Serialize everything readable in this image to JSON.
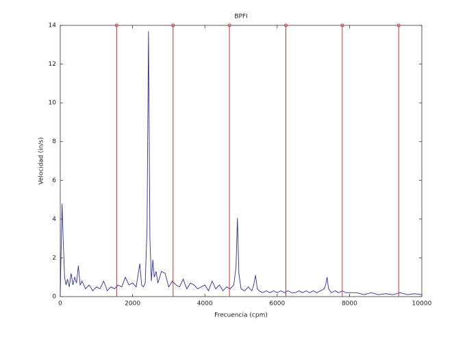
{
  "chart_data": {
    "type": "line",
    "title": "BPFI",
    "xlabel": "Frecuencia (cpm)",
    "ylabel": "Velocidad (in/s)",
    "xlim": [
      0,
      10000
    ],
    "xticks": [
      0,
      2000,
      4000,
      6000,
      8000,
      10000
    ],
    "ylim": [
      0,
      14
    ],
    "yticks": [
      0,
      2,
      4,
      6,
      8,
      10,
      12,
      14
    ],
    "series": [
      {
        "type": "line",
        "color": "#2a2aa8",
        "x": [
          0,
          20,
          50,
          80,
          120,
          160,
          200,
          250,
          300,
          350,
          400,
          450,
          500,
          550,
          600,
          700,
          800,
          900,
          1000,
          1100,
          1200,
          1300,
          1400,
          1500,
          1600,
          1700,
          1800,
          1900,
          2000,
          2100,
          2200,
          2250,
          2300,
          2350,
          2400,
          2440,
          2480,
          2520,
          2560,
          2600,
          2650,
          2700,
          2800,
          2900,
          3000,
          3100,
          3200,
          3300,
          3400,
          3500,
          3600,
          3700,
          3800,
          3900,
          4000,
          4100,
          4200,
          4300,
          4400,
          4500,
          4600,
          4700,
          4800,
          4860,
          4900,
          4940,
          5000,
          5100,
          5200,
          5300,
          5350,
          5400,
          5450,
          5500,
          5600,
          5700,
          5800,
          5900,
          6000,
          6100,
          6200,
          6300,
          6400,
          6500,
          6600,
          6700,
          6800,
          6900,
          7000,
          7100,
          7200,
          7300,
          7340,
          7380,
          7420,
          7500,
          7600,
          7700,
          7800,
          7900,
          8000,
          8200,
          8400,
          8600,
          8800,
          9000,
          9200,
          9400,
          9600,
          9800,
          10000
        ],
        "values": [
          0.1,
          2.0,
          4.8,
          3.0,
          1.0,
          0.6,
          0.9,
          0.5,
          1.2,
          0.6,
          1.0,
          0.7,
          1.6,
          0.6,
          0.8,
          0.4,
          0.6,
          0.3,
          0.5,
          0.4,
          0.8,
          0.3,
          0.5,
          0.4,
          0.6,
          0.5,
          1.0,
          0.6,
          0.7,
          0.5,
          1.7,
          0.6,
          0.5,
          0.7,
          3.5,
          13.7,
          3.0,
          0.8,
          1.9,
          1.0,
          1.3,
          0.7,
          1.3,
          1.2,
          0.5,
          0.8,
          0.6,
          0.5,
          0.9,
          0.4,
          0.7,
          0.6,
          0.4,
          0.5,
          0.6,
          0.3,
          0.8,
          0.4,
          0.6,
          0.3,
          0.5,
          0.4,
          0.6,
          1.5,
          4.05,
          1.2,
          0.4,
          0.3,
          0.5,
          0.3,
          0.6,
          1.1,
          0.4,
          0.3,
          0.2,
          0.3,
          0.2,
          0.3,
          0.2,
          0.3,
          0.2,
          0.3,
          0.2,
          0.2,
          0.3,
          0.2,
          0.3,
          0.2,
          0.3,
          0.2,
          0.3,
          0.4,
          0.6,
          1.0,
          0.4,
          0.2,
          0.3,
          0.2,
          0.3,
          0.2,
          0.2,
          0.2,
          0.1,
          0.2,
          0.1,
          0.15,
          0.1,
          0.2,
          0.1,
          0.15,
          0.1
        ]
      },
      {
        "type": "stem",
        "color": "#d03030",
        "x": [
          1560,
          3120,
          4680,
          6240,
          7800,
          9360
        ],
        "values": [
          14,
          14,
          14,
          14,
          14,
          14
        ]
      }
    ]
  }
}
